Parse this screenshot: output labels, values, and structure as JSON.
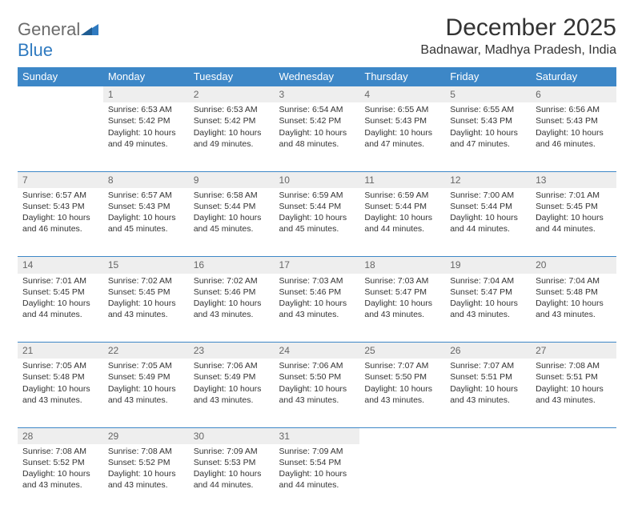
{
  "brand": {
    "word1": "General",
    "word2": "Blue"
  },
  "title": "December 2025",
  "location": "Badnawar, Madhya Pradesh, India",
  "colors": {
    "header_bg": "#3d87c7",
    "header_fg": "#ffffff",
    "daynum_bg": "#eeeeee",
    "daynum_fg": "#666666",
    "text": "#333333",
    "logo_gray": "#6b6b6b",
    "logo_blue": "#2f7ac0"
  },
  "day_headers": [
    "Sunday",
    "Monday",
    "Tuesday",
    "Wednesday",
    "Thursday",
    "Friday",
    "Saturday"
  ],
  "weeks": [
    [
      null,
      {
        "n": "1",
        "sr": "6:53 AM",
        "ss": "5:42 PM",
        "dl": "10 hours and 49 minutes."
      },
      {
        "n": "2",
        "sr": "6:53 AM",
        "ss": "5:42 PM",
        "dl": "10 hours and 49 minutes."
      },
      {
        "n": "3",
        "sr": "6:54 AM",
        "ss": "5:42 PM",
        "dl": "10 hours and 48 minutes."
      },
      {
        "n": "4",
        "sr": "6:55 AM",
        "ss": "5:43 PM",
        "dl": "10 hours and 47 minutes."
      },
      {
        "n": "5",
        "sr": "6:55 AM",
        "ss": "5:43 PM",
        "dl": "10 hours and 47 minutes."
      },
      {
        "n": "6",
        "sr": "6:56 AM",
        "ss": "5:43 PM",
        "dl": "10 hours and 46 minutes."
      }
    ],
    [
      {
        "n": "7",
        "sr": "6:57 AM",
        "ss": "5:43 PM",
        "dl": "10 hours and 46 minutes."
      },
      {
        "n": "8",
        "sr": "6:57 AM",
        "ss": "5:43 PM",
        "dl": "10 hours and 45 minutes."
      },
      {
        "n": "9",
        "sr": "6:58 AM",
        "ss": "5:44 PM",
        "dl": "10 hours and 45 minutes."
      },
      {
        "n": "10",
        "sr": "6:59 AM",
        "ss": "5:44 PM",
        "dl": "10 hours and 45 minutes."
      },
      {
        "n": "11",
        "sr": "6:59 AM",
        "ss": "5:44 PM",
        "dl": "10 hours and 44 minutes."
      },
      {
        "n": "12",
        "sr": "7:00 AM",
        "ss": "5:44 PM",
        "dl": "10 hours and 44 minutes."
      },
      {
        "n": "13",
        "sr": "7:01 AM",
        "ss": "5:45 PM",
        "dl": "10 hours and 44 minutes."
      }
    ],
    [
      {
        "n": "14",
        "sr": "7:01 AM",
        "ss": "5:45 PM",
        "dl": "10 hours and 44 minutes."
      },
      {
        "n": "15",
        "sr": "7:02 AM",
        "ss": "5:45 PM",
        "dl": "10 hours and 43 minutes."
      },
      {
        "n": "16",
        "sr": "7:02 AM",
        "ss": "5:46 PM",
        "dl": "10 hours and 43 minutes."
      },
      {
        "n": "17",
        "sr": "7:03 AM",
        "ss": "5:46 PM",
        "dl": "10 hours and 43 minutes."
      },
      {
        "n": "18",
        "sr": "7:03 AM",
        "ss": "5:47 PM",
        "dl": "10 hours and 43 minutes."
      },
      {
        "n": "19",
        "sr": "7:04 AM",
        "ss": "5:47 PM",
        "dl": "10 hours and 43 minutes."
      },
      {
        "n": "20",
        "sr": "7:04 AM",
        "ss": "5:48 PM",
        "dl": "10 hours and 43 minutes."
      }
    ],
    [
      {
        "n": "21",
        "sr": "7:05 AM",
        "ss": "5:48 PM",
        "dl": "10 hours and 43 minutes."
      },
      {
        "n": "22",
        "sr": "7:05 AM",
        "ss": "5:49 PM",
        "dl": "10 hours and 43 minutes."
      },
      {
        "n": "23",
        "sr": "7:06 AM",
        "ss": "5:49 PM",
        "dl": "10 hours and 43 minutes."
      },
      {
        "n": "24",
        "sr": "7:06 AM",
        "ss": "5:50 PM",
        "dl": "10 hours and 43 minutes."
      },
      {
        "n": "25",
        "sr": "7:07 AM",
        "ss": "5:50 PM",
        "dl": "10 hours and 43 minutes."
      },
      {
        "n": "26",
        "sr": "7:07 AM",
        "ss": "5:51 PM",
        "dl": "10 hours and 43 minutes."
      },
      {
        "n": "27",
        "sr": "7:08 AM",
        "ss": "5:51 PM",
        "dl": "10 hours and 43 minutes."
      }
    ],
    [
      {
        "n": "28",
        "sr": "7:08 AM",
        "ss": "5:52 PM",
        "dl": "10 hours and 43 minutes."
      },
      {
        "n": "29",
        "sr": "7:08 AM",
        "ss": "5:52 PM",
        "dl": "10 hours and 43 minutes."
      },
      {
        "n": "30",
        "sr": "7:09 AM",
        "ss": "5:53 PM",
        "dl": "10 hours and 44 minutes."
      },
      {
        "n": "31",
        "sr": "7:09 AM",
        "ss": "5:54 PM",
        "dl": "10 hours and 44 minutes."
      },
      null,
      null,
      null
    ]
  ],
  "labels": {
    "sunrise": "Sunrise: ",
    "sunset": "Sunset: ",
    "daylight": "Daylight: "
  }
}
